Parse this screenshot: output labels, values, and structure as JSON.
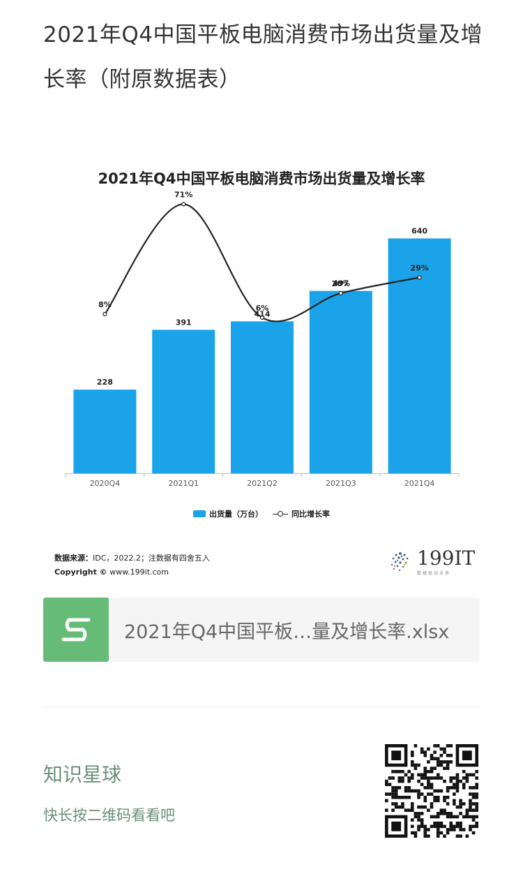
{
  "page": {
    "title": "2021年Q4中国平板电脑消费市场出货量及增长率（附原数据表）"
  },
  "chart_data": {
    "type": "bar",
    "title": "2021年Q4中国平板电脑消费市场出货量及增长率",
    "categories": [
      "2020Q4",
      "2021Q1",
      "2021Q2",
      "2021Q3",
      "2021Q4"
    ],
    "series": [
      {
        "name": "出货量（万台）",
        "type": "bar",
        "values": [
          228,
          391,
          414,
          497,
          640
        ],
        "labels": [
          "228",
          "391",
          "414",
          "497",
          "640"
        ],
        "color": "#1aa3e8"
      },
      {
        "name": "同比增长率",
        "type": "line",
        "values": [
          8,
          71,
          6,
          20,
          29
        ],
        "labels": [
          "8%",
          "71%",
          "6%",
          "20%",
          "29%"
        ],
        "color": "#222222"
      }
    ],
    "bar_ylim": [
      0,
      700
    ],
    "line_ylim": [
      -40,
      80
    ],
    "legend": "bottom-center",
    "grid": false
  },
  "source": {
    "label": "数据来源：",
    "text": "IDC，2022.2；注数据有四舍五入",
    "copyright_label": "Copyright ©",
    "copyright_text": "www.199it.com"
  },
  "brand": {
    "name": "199IT",
    "tagline": "数据驱动未来"
  },
  "file": {
    "name": "2021年Q4中国平板…量及增长率.xlsx",
    "icon": "spreadsheet-icon",
    "icon_color": "#66bb77"
  },
  "promo": {
    "title": "知识星球",
    "subtitle": "快长按二维码看看吧",
    "qr_icon": "qr-code"
  }
}
